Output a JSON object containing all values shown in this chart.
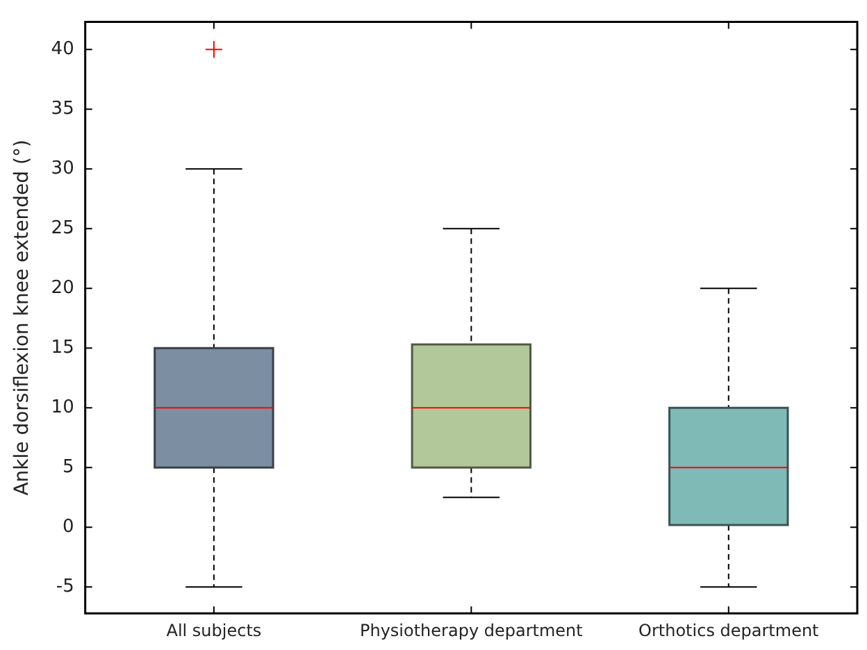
{
  "chart_data": {
    "type": "box",
    "ylabel": "Ankle dorsiflexion knee extended (°)",
    "categories": [
      "All subjects",
      "Physiotherapy department",
      "Orthotics department"
    ],
    "boxes": [
      {
        "low": -5,
        "q1": 5,
        "median": 10,
        "q3": 15,
        "high": 30,
        "outliers": [
          40
        ]
      },
      {
        "low": 2.5,
        "q1": 5,
        "median": 10,
        "q3": 15.3,
        "high": 25
      },
      {
        "low": -5,
        "q1": 0.2,
        "median": 5,
        "q3": 10,
        "high": 20
      }
    ],
    "colors": [
      "#7c8ea2",
      "#b2c89a",
      "#7fbab7"
    ],
    "ylim": [
      -7.2,
      42.3
    ],
    "yticks": [
      -5,
      0,
      5,
      10,
      15,
      20,
      25,
      30,
      35,
      40
    ],
    "grid": false,
    "legend": false
  }
}
